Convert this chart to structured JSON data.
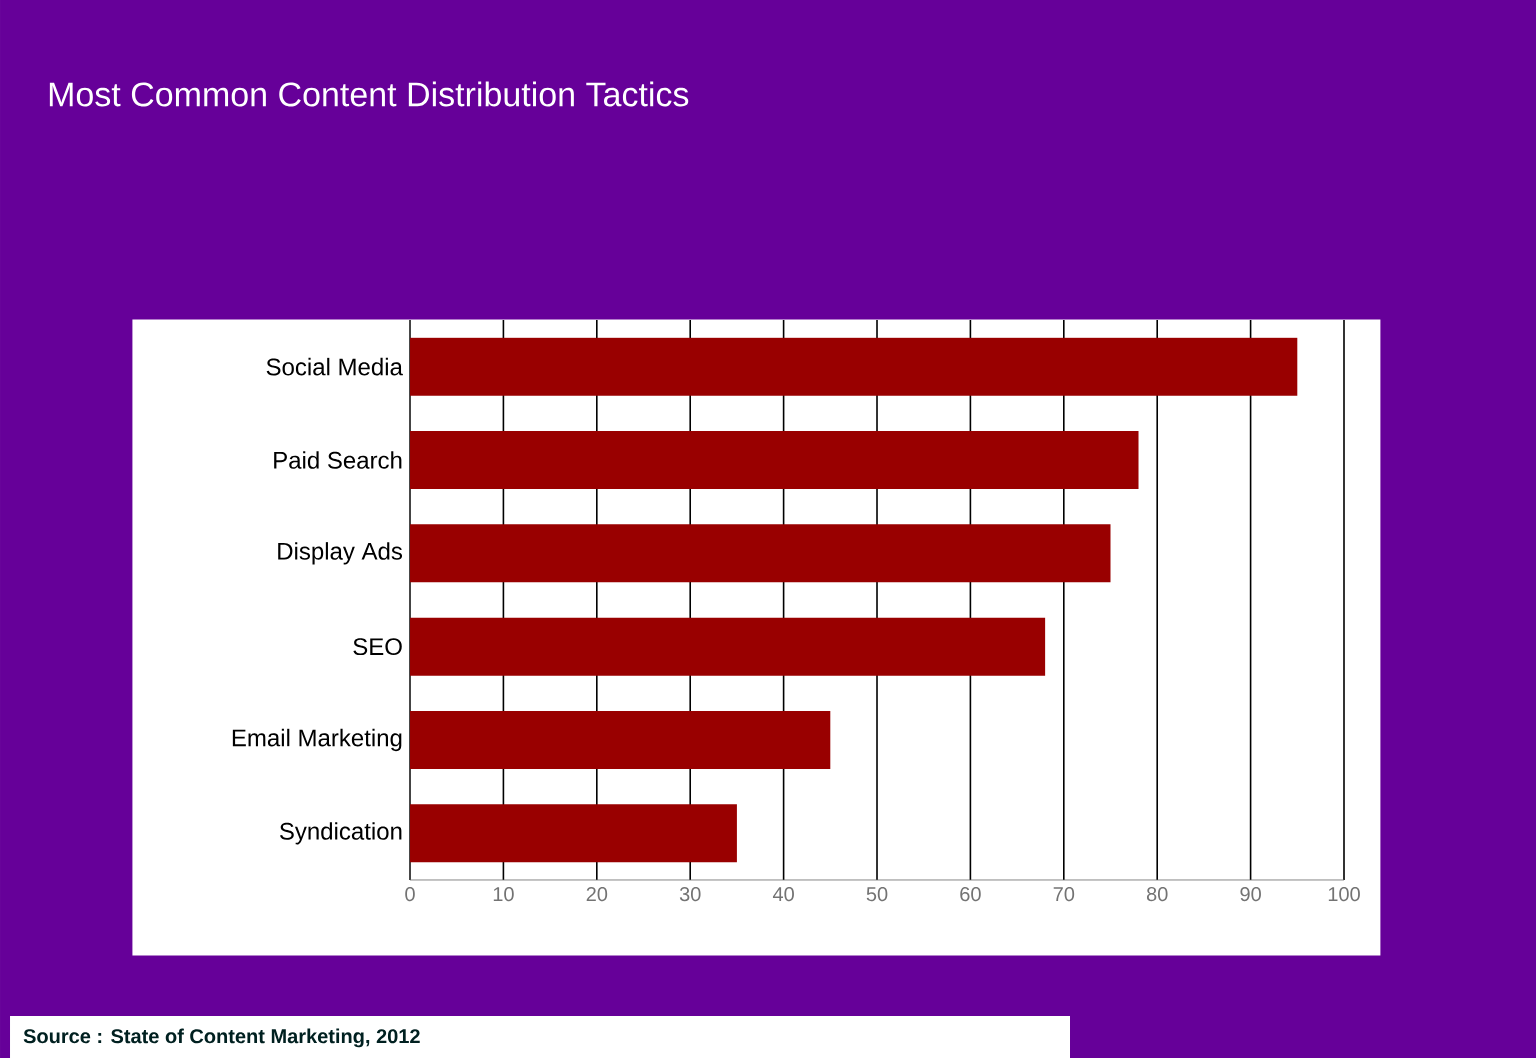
{
  "chart_data": {
    "type": "bar",
    "orientation": "horizontal",
    "title": "Most Common Content Distribution Tactics",
    "categories": [
      "Social Media",
      "Paid Search",
      "Display Ads",
      "SEO",
      "Email Marketing",
      "Syndication"
    ],
    "values": [
      95,
      78,
      75,
      68,
      45,
      35
    ],
    "color": "#990000",
    "xlim": [
      0,
      100
    ],
    "xticks": [
      0,
      10,
      20,
      30,
      40,
      50,
      60,
      70,
      80,
      90,
      100
    ],
    "grid": "x",
    "annotations": [
      "Source : State of Content Marketing, 2012"
    ]
  }
}
